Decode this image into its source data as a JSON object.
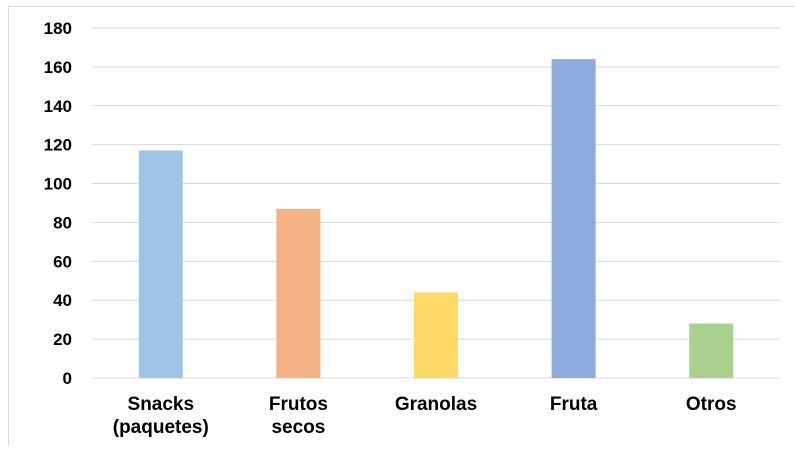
{
  "chart_data": {
    "type": "bar",
    "title": "",
    "xlabel": "",
    "ylabel": "",
    "categories": [
      [
        "Snacks",
        "(paquetes)"
      ],
      [
        "Frutos",
        "secos"
      ],
      [
        "Granolas"
      ],
      [
        "Fruta"
      ],
      [
        "Otros"
      ]
    ],
    "values": [
      117,
      87,
      44,
      164,
      28
    ],
    "colors": [
      "#9dc3e6",
      "#f4b183",
      "#ffd966",
      "#8faadc",
      "#a9d18e"
    ],
    "ylim": [
      0,
      180
    ],
    "yticks": [
      "0",
      "20",
      "40",
      "60",
      "80",
      "100",
      "120",
      "140",
      "160",
      "180"
    ],
    "grid": true,
    "gridColor": "#d9d9d9",
    "legend": "none"
  }
}
